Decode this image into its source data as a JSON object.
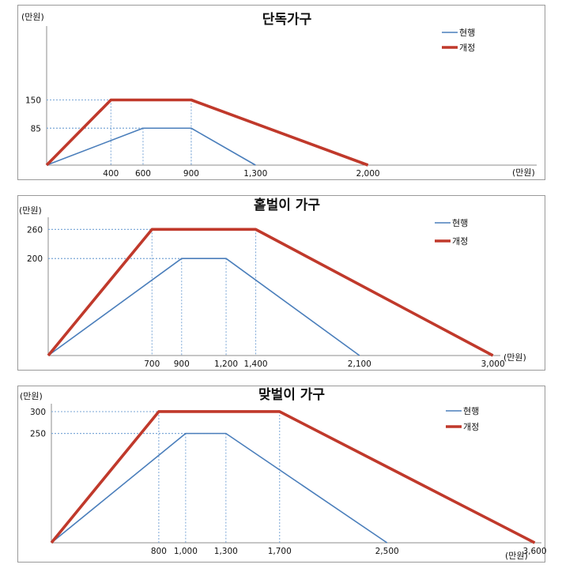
{
  "chart_data": [
    {
      "type": "line",
      "title": "단독가구",
      "ylabel": "(만원)",
      "xlabel": "(만원)",
      "xlim": [
        0,
        3050
      ],
      "ylim": [
        0,
        320
      ],
      "legend": "top-right",
      "x_ticks": [
        400,
        600,
        900,
        1300,
        2000
      ],
      "x_tick_labels": [
        "400",
        "600",
        "900",
        "1,300",
        "2,000"
      ],
      "y_ticks": [
        85,
        150
      ],
      "y_tick_labels": [
        "85",
        "150"
      ],
      "series": [
        {
          "name": "현행",
          "color": "#4a7ebb",
          "points": [
            [
              0,
              0
            ],
            [
              600,
              85
            ],
            [
              900,
              85
            ],
            [
              1300,
              0
            ]
          ]
        },
        {
          "name": "개정",
          "color": "#c0392b",
          "points": [
            [
              0,
              0
            ],
            [
              400,
              150
            ],
            [
              900,
              150
            ],
            [
              2000,
              0
            ]
          ]
        }
      ]
    },
    {
      "type": "line",
      "title": "홑벌이 가구",
      "ylabel": "(만원)",
      "xlabel": "(만원)",
      "xlim": [
        0,
        3050
      ],
      "ylim": [
        0,
        285
      ],
      "legend": "top-right",
      "x_ticks": [
        700,
        900,
        1200,
        1400,
        2100,
        3000
      ],
      "x_tick_labels": [
        "700",
        "900",
        "1,200",
        "1,400",
        "2,100",
        "3,000"
      ],
      "y_ticks": [
        200,
        260
      ],
      "y_tick_labels": [
        "200",
        "260"
      ],
      "series": [
        {
          "name": "현행",
          "color": "#4a7ebb",
          "points": [
            [
              0,
              0
            ],
            [
              900,
              200
            ],
            [
              1200,
              200
            ],
            [
              2100,
              0
            ]
          ]
        },
        {
          "name": "개정",
          "color": "#c0392b",
          "points": [
            [
              0,
              0
            ],
            [
              700,
              260
            ],
            [
              1400,
              260
            ],
            [
              3000,
              0
            ]
          ]
        }
      ]
    },
    {
      "type": "line",
      "title": "맞벌이 가구",
      "ylabel": "(만원)",
      "xlabel": "(만원)",
      "xlim": [
        0,
        3650
      ],
      "ylim": [
        0,
        318
      ],
      "legend": "top-right",
      "x_ticks": [
        800,
        1000,
        1300,
        1700,
        2500,
        3600
      ],
      "x_tick_labels": [
        "800",
        "1,000",
        "1,300",
        "1,700",
        "2,500",
        "3,600"
      ],
      "y_ticks": [
        250,
        300
      ],
      "y_tick_labels": [
        "250",
        "300"
      ],
      "series": [
        {
          "name": "현행",
          "color": "#4a7ebb",
          "points": [
            [
              0,
              0
            ],
            [
              1000,
              250
            ],
            [
              1300,
              250
            ],
            [
              2500,
              0
            ]
          ]
        },
        {
          "name": "개정",
          "color": "#c0392b",
          "points": [
            [
              0,
              0
            ],
            [
              800,
              300
            ],
            [
              1700,
              300
            ],
            [
              3600,
              0
            ]
          ]
        }
      ]
    }
  ]
}
